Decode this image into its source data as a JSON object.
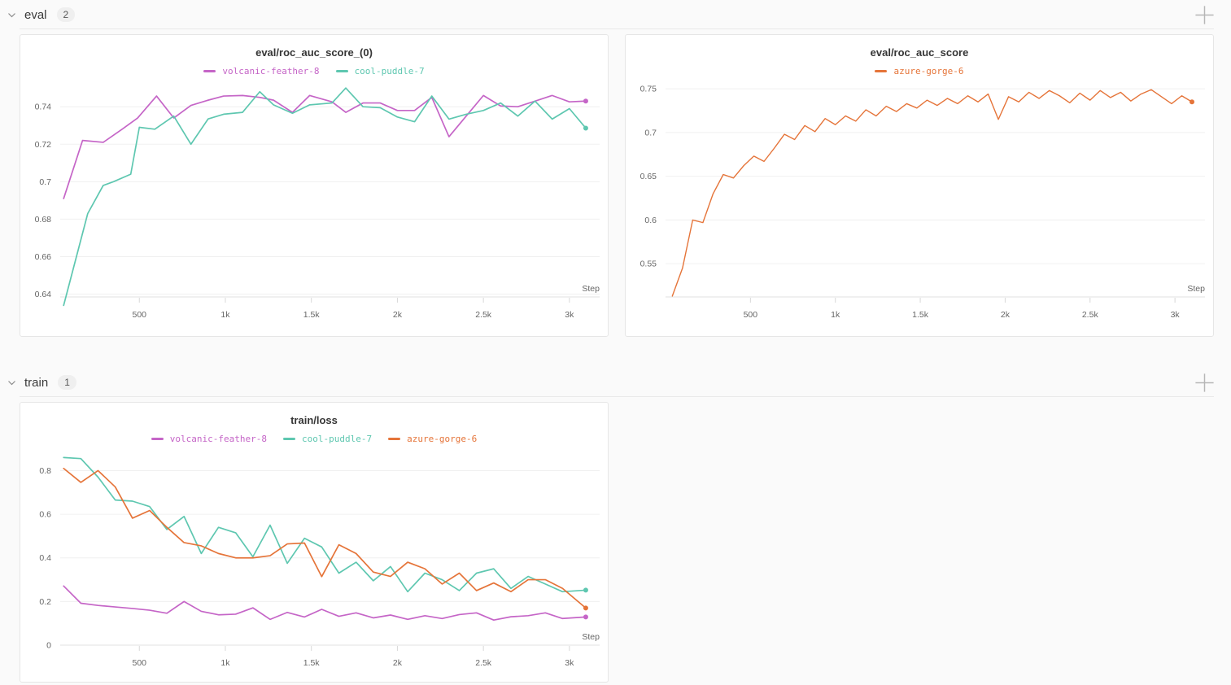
{
  "sections": [
    {
      "label": "eval",
      "count": "2"
    },
    {
      "label": "train",
      "count": "1"
    }
  ],
  "icons": {
    "section_collapse": "chevron-down",
    "section_add": "plus"
  },
  "colors": {
    "magenta": "#C565C7",
    "teal": "#5EC7B0",
    "orange": "#E57439",
    "grid": "#F0F0F0",
    "axis": "#E2E2E2",
    "tick_mark": "#D8D8D8",
    "tick_text": "#666666"
  },
  "chart_data": [
    {
      "type": "line",
      "title": "eval/roc_auc_score_(0)",
      "xlabel": "Step",
      "x_ticks": [
        500,
        1000,
        1500,
        2000,
        2500,
        3000
      ],
      "x_tick_labels": [
        "500",
        "1k",
        "1.5k",
        "2k",
        "2.5k",
        "3k"
      ],
      "xlim": [
        40,
        3100
      ],
      "y_ticks": [
        0.64,
        0.66,
        0.68,
        0.7,
        0.72,
        0.74
      ],
      "y_tick_labels": [
        "0.64",
        "0.66",
        "0.68",
        "0.7",
        "0.72",
        "0.74"
      ],
      "ylim": [
        0.6385,
        0.7505
      ],
      "grid": true,
      "legend_position": "top-center",
      "series": [
        {
          "name": "volcanic-feather-8",
          "color": "#C565C7",
          "x": [
            60,
            170,
            290,
            400,
            490,
            600,
            700,
            800,
            900,
            990,
            1100,
            1200,
            1280,
            1390,
            1490,
            1620,
            1700,
            1800,
            1900,
            2000,
            2100,
            2200,
            2300,
            2400,
            2500,
            2600,
            2700,
            2800,
            2900,
            3000,
            3095
          ],
          "y": [
            0.691,
            0.722,
            0.721,
            0.728,
            0.734,
            0.7457,
            0.734,
            0.7407,
            0.7435,
            0.7457,
            0.746,
            0.745,
            0.7435,
            0.737,
            0.746,
            0.7426,
            0.737,
            0.742,
            0.742,
            0.738,
            0.738,
            0.745,
            0.724,
            0.735,
            0.746,
            0.7404,
            0.74,
            0.743,
            0.746,
            0.7426,
            0.743
          ]
        },
        {
          "name": "cool-puddle-7",
          "color": "#5EC7B0",
          "x": [
            60,
            200,
            290,
            350,
            450,
            500,
            590,
            700,
            800,
            900,
            990,
            1100,
            1200,
            1280,
            1390,
            1490,
            1620,
            1700,
            1800,
            1900,
            2000,
            2100,
            2200,
            2300,
            2400,
            2500,
            2600,
            2700,
            2800,
            2900,
            3000,
            3095
          ],
          "y": [
            0.634,
            0.683,
            0.698,
            0.7,
            0.704,
            0.729,
            0.728,
            0.735,
            0.72,
            0.7335,
            0.736,
            0.737,
            0.748,
            0.741,
            0.7365,
            0.741,
            0.742,
            0.75,
            0.74,
            0.7395,
            0.7345,
            0.732,
            0.7457,
            0.7334,
            0.736,
            0.738,
            0.742,
            0.735,
            0.743,
            0.7334,
            0.739,
            0.7286
          ]
        }
      ]
    },
    {
      "type": "line",
      "title": "eval/roc_auc_score",
      "xlabel": "Step",
      "x_ticks": [
        500,
        1000,
        1500,
        2000,
        2500,
        3000
      ],
      "x_tick_labels": [
        "500",
        "1k",
        "1.5k",
        "2k",
        "2.5k",
        "3k"
      ],
      "xlim": [
        0,
        3100
      ],
      "y_ticks": [
        0.55,
        0.6,
        0.65,
        0.7,
        0.75
      ],
      "y_tick_labels": [
        "0.55",
        "0.6",
        "0.65",
        "0.7",
        "0.75"
      ],
      "ylim": [
        0.512,
        0.752
      ],
      "grid": true,
      "legend_position": "top-center",
      "series": [
        {
          "name": "azure-gorge-6",
          "color": "#E57439",
          "x": [
            40,
            100,
            160,
            220,
            280,
            340,
            400,
            460,
            520,
            580,
            640,
            700,
            760,
            820,
            880,
            940,
            1000,
            1060,
            1120,
            1180,
            1240,
            1300,
            1360,
            1420,
            1480,
            1540,
            1600,
            1660,
            1720,
            1780,
            1840,
            1900,
            1960,
            2020,
            2080,
            2140,
            2200,
            2260,
            2320,
            2380,
            2440,
            2500,
            2560,
            2620,
            2680,
            2740,
            2800,
            2860,
            2920,
            2980,
            3040,
            3100
          ],
          "y": [
            0.513,
            0.545,
            0.6,
            0.597,
            0.63,
            0.652,
            0.648,
            0.662,
            0.673,
            0.667,
            0.682,
            0.698,
            0.692,
            0.708,
            0.701,
            0.716,
            0.709,
            0.719,
            0.713,
            0.726,
            0.719,
            0.73,
            0.724,
            0.733,
            0.728,
            0.737,
            0.731,
            0.739,
            0.733,
            0.742,
            0.735,
            0.744,
            0.715,
            0.741,
            0.735,
            0.746,
            0.739,
            0.748,
            0.742,
            0.734,
            0.745,
            0.737,
            0.748,
            0.74,
            0.746,
            0.736,
            0.744,
            0.749,
            0.741,
            0.733,
            0.742,
            0.735
          ]
        }
      ]
    },
    {
      "type": "line",
      "title": "train/loss",
      "xlabel": "Step",
      "x_ticks": [
        500,
        1000,
        1500,
        2000,
        2500,
        3000
      ],
      "x_tick_labels": [
        "500",
        "1k",
        "1.5k",
        "2k",
        "2.5k",
        "3k"
      ],
      "xlim": [
        40,
        3100
      ],
      "y_ticks": [
        0,
        0.2,
        0.4,
        0.6,
        0.8
      ],
      "y_tick_labels": [
        "0",
        "0.2",
        "0.4",
        "0.6",
        "0.8"
      ],
      "ylim": [
        0,
        0.88
      ],
      "grid": true,
      "legend_position": "top-center",
      "series": [
        {
          "name": "volcanic-feather-8",
          "color": "#C565C7",
          "x": [
            60,
            160,
            260,
            360,
            460,
            560,
            660,
            760,
            860,
            960,
            1060,
            1160,
            1260,
            1360,
            1460,
            1560,
            1660,
            1760,
            1860,
            1960,
            2060,
            2160,
            2260,
            2360,
            2460,
            2560,
            2660,
            2760,
            2860,
            2960,
            3095
          ],
          "y": [
            0.271,
            0.192,
            0.182,
            0.175,
            0.168,
            0.16,
            0.146,
            0.2,
            0.155,
            0.139,
            0.142,
            0.171,
            0.118,
            0.15,
            0.129,
            0.164,
            0.132,
            0.148,
            0.125,
            0.138,
            0.118,
            0.135,
            0.122,
            0.14,
            0.148,
            0.115,
            0.13,
            0.135,
            0.148,
            0.122,
            0.129
          ]
        },
        {
          "name": "cool-puddle-7",
          "color": "#5EC7B0",
          "x": [
            60,
            160,
            260,
            360,
            460,
            560,
            660,
            760,
            860,
            960,
            1060,
            1160,
            1260,
            1360,
            1460,
            1560,
            1660,
            1760,
            1860,
            1960,
            2060,
            2160,
            2260,
            2360,
            2460,
            2560,
            2660,
            2760,
            2860,
            2960,
            3095
          ],
          "y": [
            0.86,
            0.855,
            0.77,
            0.665,
            0.66,
            0.635,
            0.53,
            0.59,
            0.42,
            0.54,
            0.515,
            0.405,
            0.55,
            0.375,
            0.49,
            0.45,
            0.33,
            0.38,
            0.295,
            0.36,
            0.245,
            0.33,
            0.3,
            0.25,
            0.33,
            0.35,
            0.26,
            0.315,
            0.28,
            0.245,
            0.252
          ]
        },
        {
          "name": "azure-gorge-6",
          "color": "#E57439",
          "x": [
            60,
            160,
            260,
            360,
            460,
            560,
            660,
            760,
            860,
            960,
            1060,
            1160,
            1260,
            1360,
            1460,
            1560,
            1660,
            1760,
            1860,
            1960,
            2060,
            2160,
            2260,
            2360,
            2460,
            2560,
            2660,
            2760,
            2860,
            2960,
            3095
          ],
          "y": [
            0.81,
            0.746,
            0.8,
            0.725,
            0.582,
            0.617,
            0.54,
            0.47,
            0.455,
            0.42,
            0.4,
            0.4,
            0.41,
            0.464,
            0.468,
            0.314,
            0.46,
            0.42,
            0.335,
            0.315,
            0.38,
            0.35,
            0.28,
            0.33,
            0.25,
            0.285,
            0.245,
            0.3,
            0.3,
            0.26,
            0.17
          ]
        }
      ]
    }
  ]
}
